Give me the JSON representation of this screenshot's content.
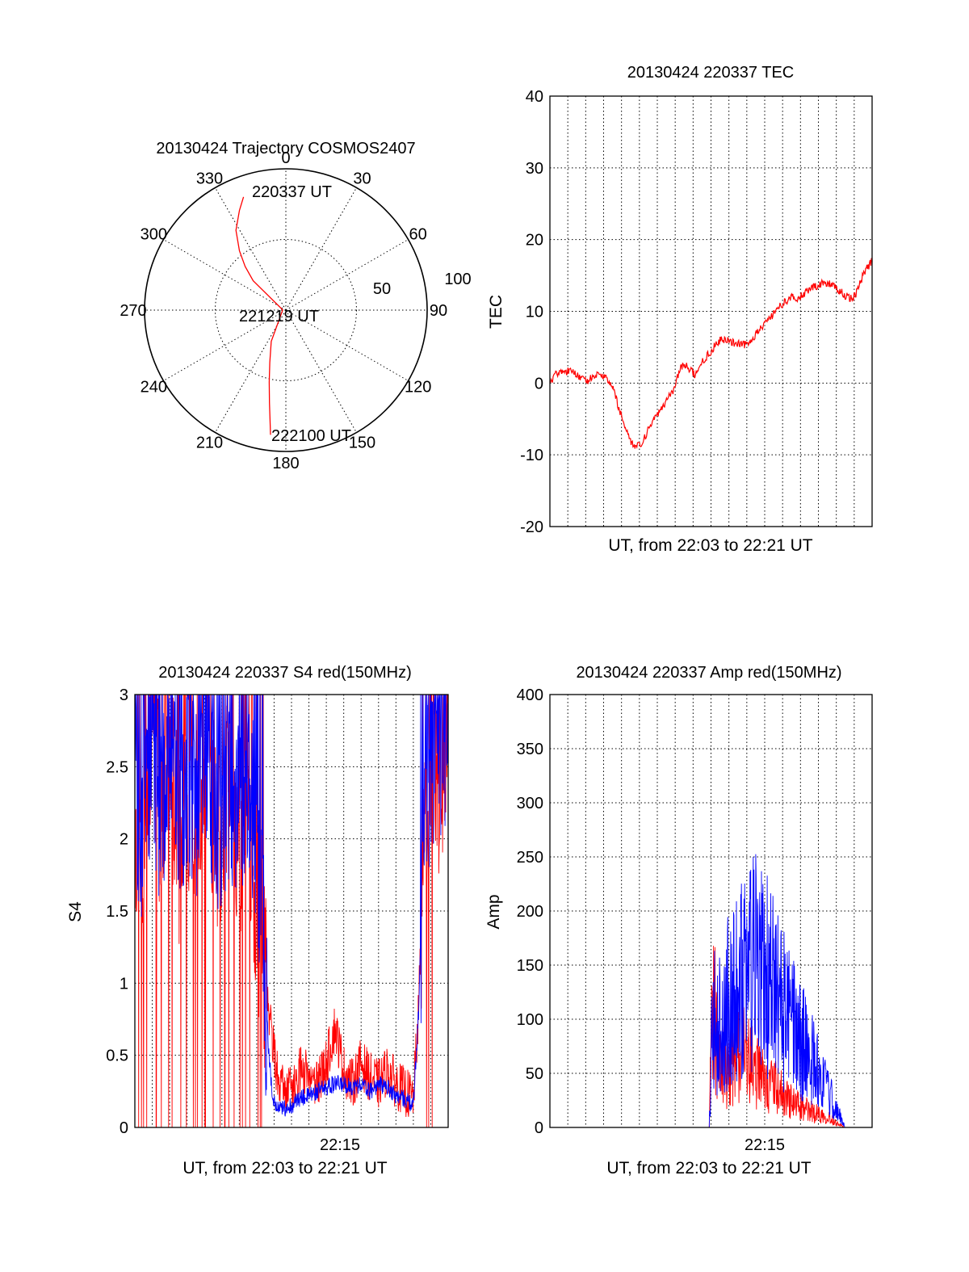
{
  "chart_data": [
    {
      "id": "trajectory",
      "type": "polar",
      "title": "20130424 Trajectory COSMOS2407",
      "azimuth_labels": [
        "0",
        "30",
        "60",
        "90",
        "120",
        "150",
        "180",
        "210",
        "240",
        "270",
        "300",
        "330"
      ],
      "elevation_ring_labels": [
        "50",
        "100"
      ],
      "grid": true,
      "series": [
        {
          "color": "#ff0000",
          "points_az_el": [
            [
              339.5,
              13
            ],
            [
              335,
              20
            ],
            [
              328,
              30
            ],
            [
              322,
              42
            ],
            [
              317,
              52
            ],
            [
              312,
              62
            ],
            [
              275,
              88
            ],
            [
              205,
              68
            ],
            [
              197,
              55
            ],
            [
              193,
              43
            ],
            [
              190,
              30
            ],
            [
              188,
              18
            ],
            [
              187,
              10
            ]
          ]
        }
      ],
      "annotations": [
        {
          "text": "220337 UT",
          "az": 339.5,
          "el": 13
        },
        {
          "text": "221219 UT",
          "az": 275,
          "el": 88
        },
        {
          "text": "222100 UT",
          "az": 187,
          "el": 10
        }
      ]
    },
    {
      "id": "tec",
      "type": "line",
      "title": "20130424 220337 TEC",
      "ylabel": "TEC",
      "xlabel": "UT, from 22:03 to 22:21 UT",
      "ylim": [
        -20,
        40
      ],
      "yticks": [
        "-20",
        "-10",
        "0",
        "10",
        "20",
        "30",
        "40"
      ],
      "xlim_minutes": [
        0,
        18
      ],
      "grid": true,
      "series": [
        {
          "color": "#ff0000",
          "x_minutes": [
            0.0,
            0.3,
            0.6,
            0.9,
            1.2,
            1.5,
            1.8,
            2.1,
            2.4,
            2.7,
            3.0,
            3.3,
            3.6,
            3.9,
            4.2,
            4.5,
            4.8,
            5.1,
            5.4,
            5.7,
            6.0,
            6.3,
            6.6,
            6.9,
            7.2,
            7.5,
            7.8,
            8.1,
            8.4,
            8.7,
            9.0,
            9.3,
            9.6,
            9.9,
            10.2,
            10.5,
            10.8,
            11.1,
            11.4,
            11.7,
            12.0,
            12.3,
            12.6,
            12.9,
            13.2,
            13.5,
            13.8,
            14.1,
            14.4,
            14.7,
            15.0,
            15.3,
            15.6,
            15.9,
            16.2,
            16.5,
            16.8,
            17.1,
            17.4,
            17.7,
            18.0
          ],
          "values": [
            0.0,
            1.2,
            1.8,
            1.6,
            1.9,
            1.3,
            0.6,
            0.3,
            1.0,
            1.3,
            0.8,
            0.4,
            -1.2,
            -4.0,
            -6.0,
            -8.0,
            -9.0,
            -8.5,
            -7.0,
            -5.5,
            -4.5,
            -3.5,
            -2.0,
            -1.0,
            1.5,
            2.8,
            2.0,
            1.2,
            2.5,
            3.5,
            4.5,
            5.5,
            6.2,
            6.0,
            5.7,
            5.5,
            5.3,
            5.6,
            6.5,
            7.3,
            8.2,
            9.1,
            10.0,
            10.8,
            11.5,
            12.0,
            11.7,
            12.2,
            12.8,
            13.3,
            13.7,
            13.9,
            13.8,
            13.5,
            12.8,
            12.2,
            11.8,
            12.4,
            14.5,
            16.0,
            17.0
          ]
        }
      ]
    },
    {
      "id": "s4",
      "type": "line",
      "title": "20130424 220337 S4 red(150MHz)",
      "ylabel": "S4",
      "xlabel": "UT, from 22:03 to 22:21 UT",
      "ylim": [
        0,
        3
      ],
      "yticks": [
        "0",
        "0.5",
        "1",
        "1.5",
        "2",
        "2.5",
        "3"
      ],
      "xtick_label": "22:15",
      "grid": true,
      "series": [
        {
          "color": "#ff0000",
          "x_minutes": [
            0.0,
            0.5,
            1.0,
            1.5,
            2.0,
            2.5,
            3.0,
            3.5,
            4.0,
            4.5,
            5.0,
            5.5,
            6.0,
            6.5,
            7.0,
            7.3,
            7.6,
            7.9,
            8.2,
            8.5,
            9.0,
            9.5,
            10.0,
            10.5,
            11.0,
            11.5,
            12.0,
            12.5,
            13.0,
            13.5,
            14.0,
            14.5,
            15.0,
            15.5,
            16.0,
            16.3,
            16.6,
            17.0,
            17.5,
            18.0
          ],
          "values": [
            2.2,
            1.8,
            2.8,
            2.1,
            2.6,
            1.9,
            2.4,
            2.0,
            2.7,
            2.2,
            1.9,
            2.5,
            2.0,
            2.3,
            1.6,
            1.2,
            0.9,
            0.6,
            0.35,
            0.3,
            0.25,
            0.4,
            0.35,
            0.3,
            0.45,
            0.7,
            0.4,
            0.3,
            0.45,
            0.35,
            0.3,
            0.4,
            0.3,
            0.25,
            0.2,
            0.8,
            2.0,
            2.6,
            2.4,
            2.7
          ]
        },
        {
          "color": "#0000ff",
          "x_minutes": [
            0.0,
            0.5,
            1.0,
            1.5,
            2.0,
            2.5,
            3.0,
            3.5,
            4.0,
            4.5,
            5.0,
            5.5,
            6.0,
            6.5,
            7.0,
            7.3,
            7.6,
            7.9,
            8.2,
            8.5,
            9.0,
            9.5,
            10.0,
            10.5,
            11.0,
            11.5,
            12.0,
            12.5,
            13.0,
            13.5,
            14.0,
            14.5,
            15.0,
            15.5,
            16.0,
            16.3,
            16.6,
            17.0,
            17.5,
            18.0
          ],
          "values": [
            2.4,
            2.0,
            2.6,
            2.2,
            2.7,
            2.1,
            2.5,
            2.2,
            2.6,
            2.3,
            2.1,
            2.4,
            2.2,
            2.5,
            2.0,
            1.5,
            0.7,
            0.2,
            0.12,
            0.13,
            0.15,
            0.2,
            0.22,
            0.25,
            0.28,
            0.3,
            0.3,
            0.28,
            0.3,
            0.25,
            0.3,
            0.28,
            0.22,
            0.2,
            0.15,
            0.8,
            2.1,
            2.6,
            2.5,
            2.8
          ]
        }
      ]
    },
    {
      "id": "amp",
      "type": "line",
      "title": "20130424 220337 Amp red(150MHz)",
      "ylabel": "Amp",
      "xlabel": "UT, from 22:03 to 22:21 UT",
      "ylim": [
        0,
        400
      ],
      "yticks": [
        "0",
        "50",
        "100",
        "150",
        "200",
        "250",
        "300",
        "350",
        "400"
      ],
      "xtick_label": "22:15",
      "grid": true,
      "series": [
        {
          "color": "#ff0000",
          "x_minutes": [
            0.0,
            8.5,
            8.9,
            9.1,
            9.3,
            9.6,
            10.0,
            10.5,
            11.0,
            11.5,
            12.0,
            12.5,
            13.0,
            13.5,
            14.0,
            14.5,
            15.0,
            15.5,
            16.0,
            16.5,
            18.0
          ],
          "values": [
            0,
            0,
            1,
            150,
            95,
            70,
            65,
            80,
            75,
            60,
            50,
            45,
            35,
            28,
            22,
            18,
            15,
            12,
            5,
            0,
            0
          ]
        },
        {
          "color": "#0000ff",
          "x_minutes": [
            0.0,
            8.5,
            8.9,
            9.1,
            9.3,
            9.6,
            10.0,
            10.5,
            11.0,
            11.5,
            12.0,
            12.5,
            13.0,
            13.5,
            14.0,
            14.5,
            15.0,
            15.5,
            16.0,
            16.5,
            18.0
          ],
          "values": [
            0,
            0,
            1,
            130,
            110,
            115,
            140,
            160,
            170,
            175,
            165,
            150,
            130,
            110,
            95,
            80,
            60,
            40,
            20,
            0,
            0
          ]
        }
      ]
    }
  ]
}
